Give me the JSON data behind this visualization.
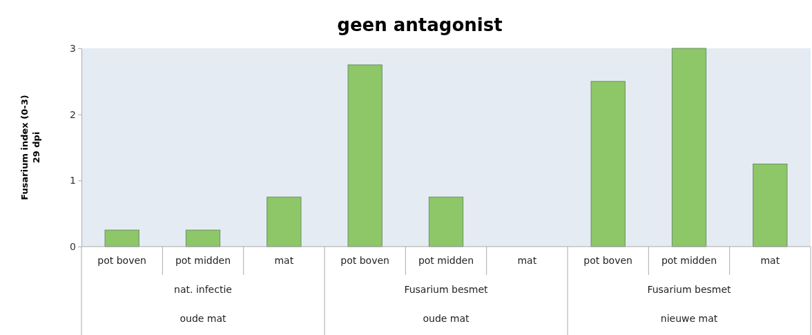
{
  "chart_data": {
    "type": "bar",
    "title": "geen antagonist",
    "ylabel": "Fusarium index (0-3)\n29 dpi",
    "categories": [
      "pot boven",
      "pot midden",
      "mat",
      "pot boven",
      "pot midden",
      "mat",
      "pot boven",
      "pot midden",
      "mat"
    ],
    "values": [
      0.25,
      0.25,
      0.75,
      2.75,
      0.75,
      0,
      2.5,
      3,
      1.25
    ],
    "color": "#8dc767",
    "ylim": [
      0,
      3
    ],
    "yticks": [
      0,
      1,
      2,
      3
    ],
    "annotations": [
      "nat. infectie",
      "Fusarium besmet",
      "Fusarium besmet",
      "oude mat",
      "oude mat",
      "nieuwe mat"
    ]
  }
}
